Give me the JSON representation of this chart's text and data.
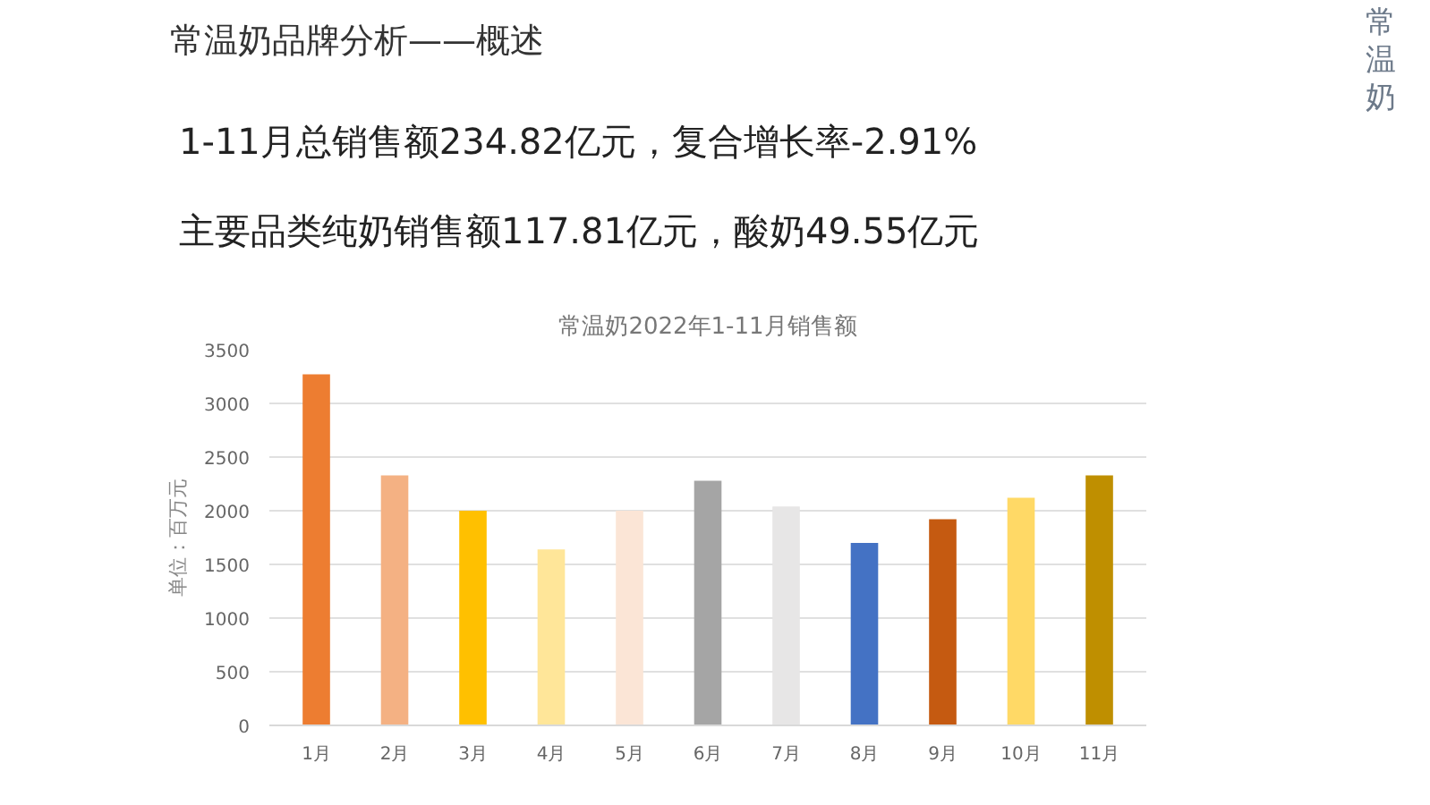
{
  "chart_data": {
    "type": "bar",
    "title": "常温奶2022年1-11月销售额",
    "ylabel": "单位：百万元",
    "annotations": [
      "常温奶品牌分析——概述",
      "1-11月总销售额234.82亿元，复合增长率-2.91%",
      "主要品类纯奶销售额117.81亿元，酸奶49.55亿元",
      "常温奶"
    ],
    "categories": [
      "1月",
      "2月",
      "3月",
      "4月",
      "5月",
      "6月",
      "7月",
      "8月",
      "9月",
      "10月",
      "11月"
    ],
    "values": [
      3270,
      2330,
      2000,
      1640,
      2000,
      2280,
      2040,
      1700,
      1920,
      2120,
      2330
    ],
    "colors": [
      "#ed7d31",
      "#f4b183",
      "#ffc000",
      "#ffe699",
      "#fbe5d6",
      "#a5a5a5",
      "#e7e6e6",
      "#4472c4",
      "#c55a11",
      "#ffd966",
      "#bf8f00"
    ],
    "ylim": [
      0,
      3500
    ],
    "yticks": [
      0,
      500,
      1000,
      1500,
      2000,
      2500,
      3000,
      3500
    ],
    "grid": "y"
  }
}
